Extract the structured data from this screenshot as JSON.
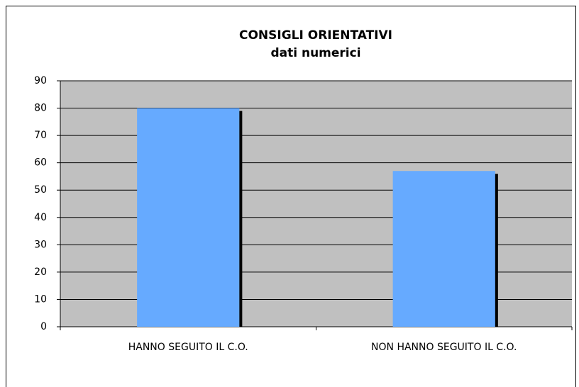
{
  "chart_data": {
    "type": "bar",
    "title": "CONSIGLI ORIENTATIVI",
    "subtitle": "dati numerici",
    "categories": [
      "HANNO SEGUITO IL C.O.",
      "NON HANNO SEGUITO IL C.O."
    ],
    "values": [
      80,
      57
    ],
    "color": "#66aaff",
    "ylim": [
      0,
      90
    ],
    "yticks": [
      0,
      10,
      20,
      30,
      40,
      50,
      60,
      70,
      80,
      90
    ],
    "grid": true
  }
}
